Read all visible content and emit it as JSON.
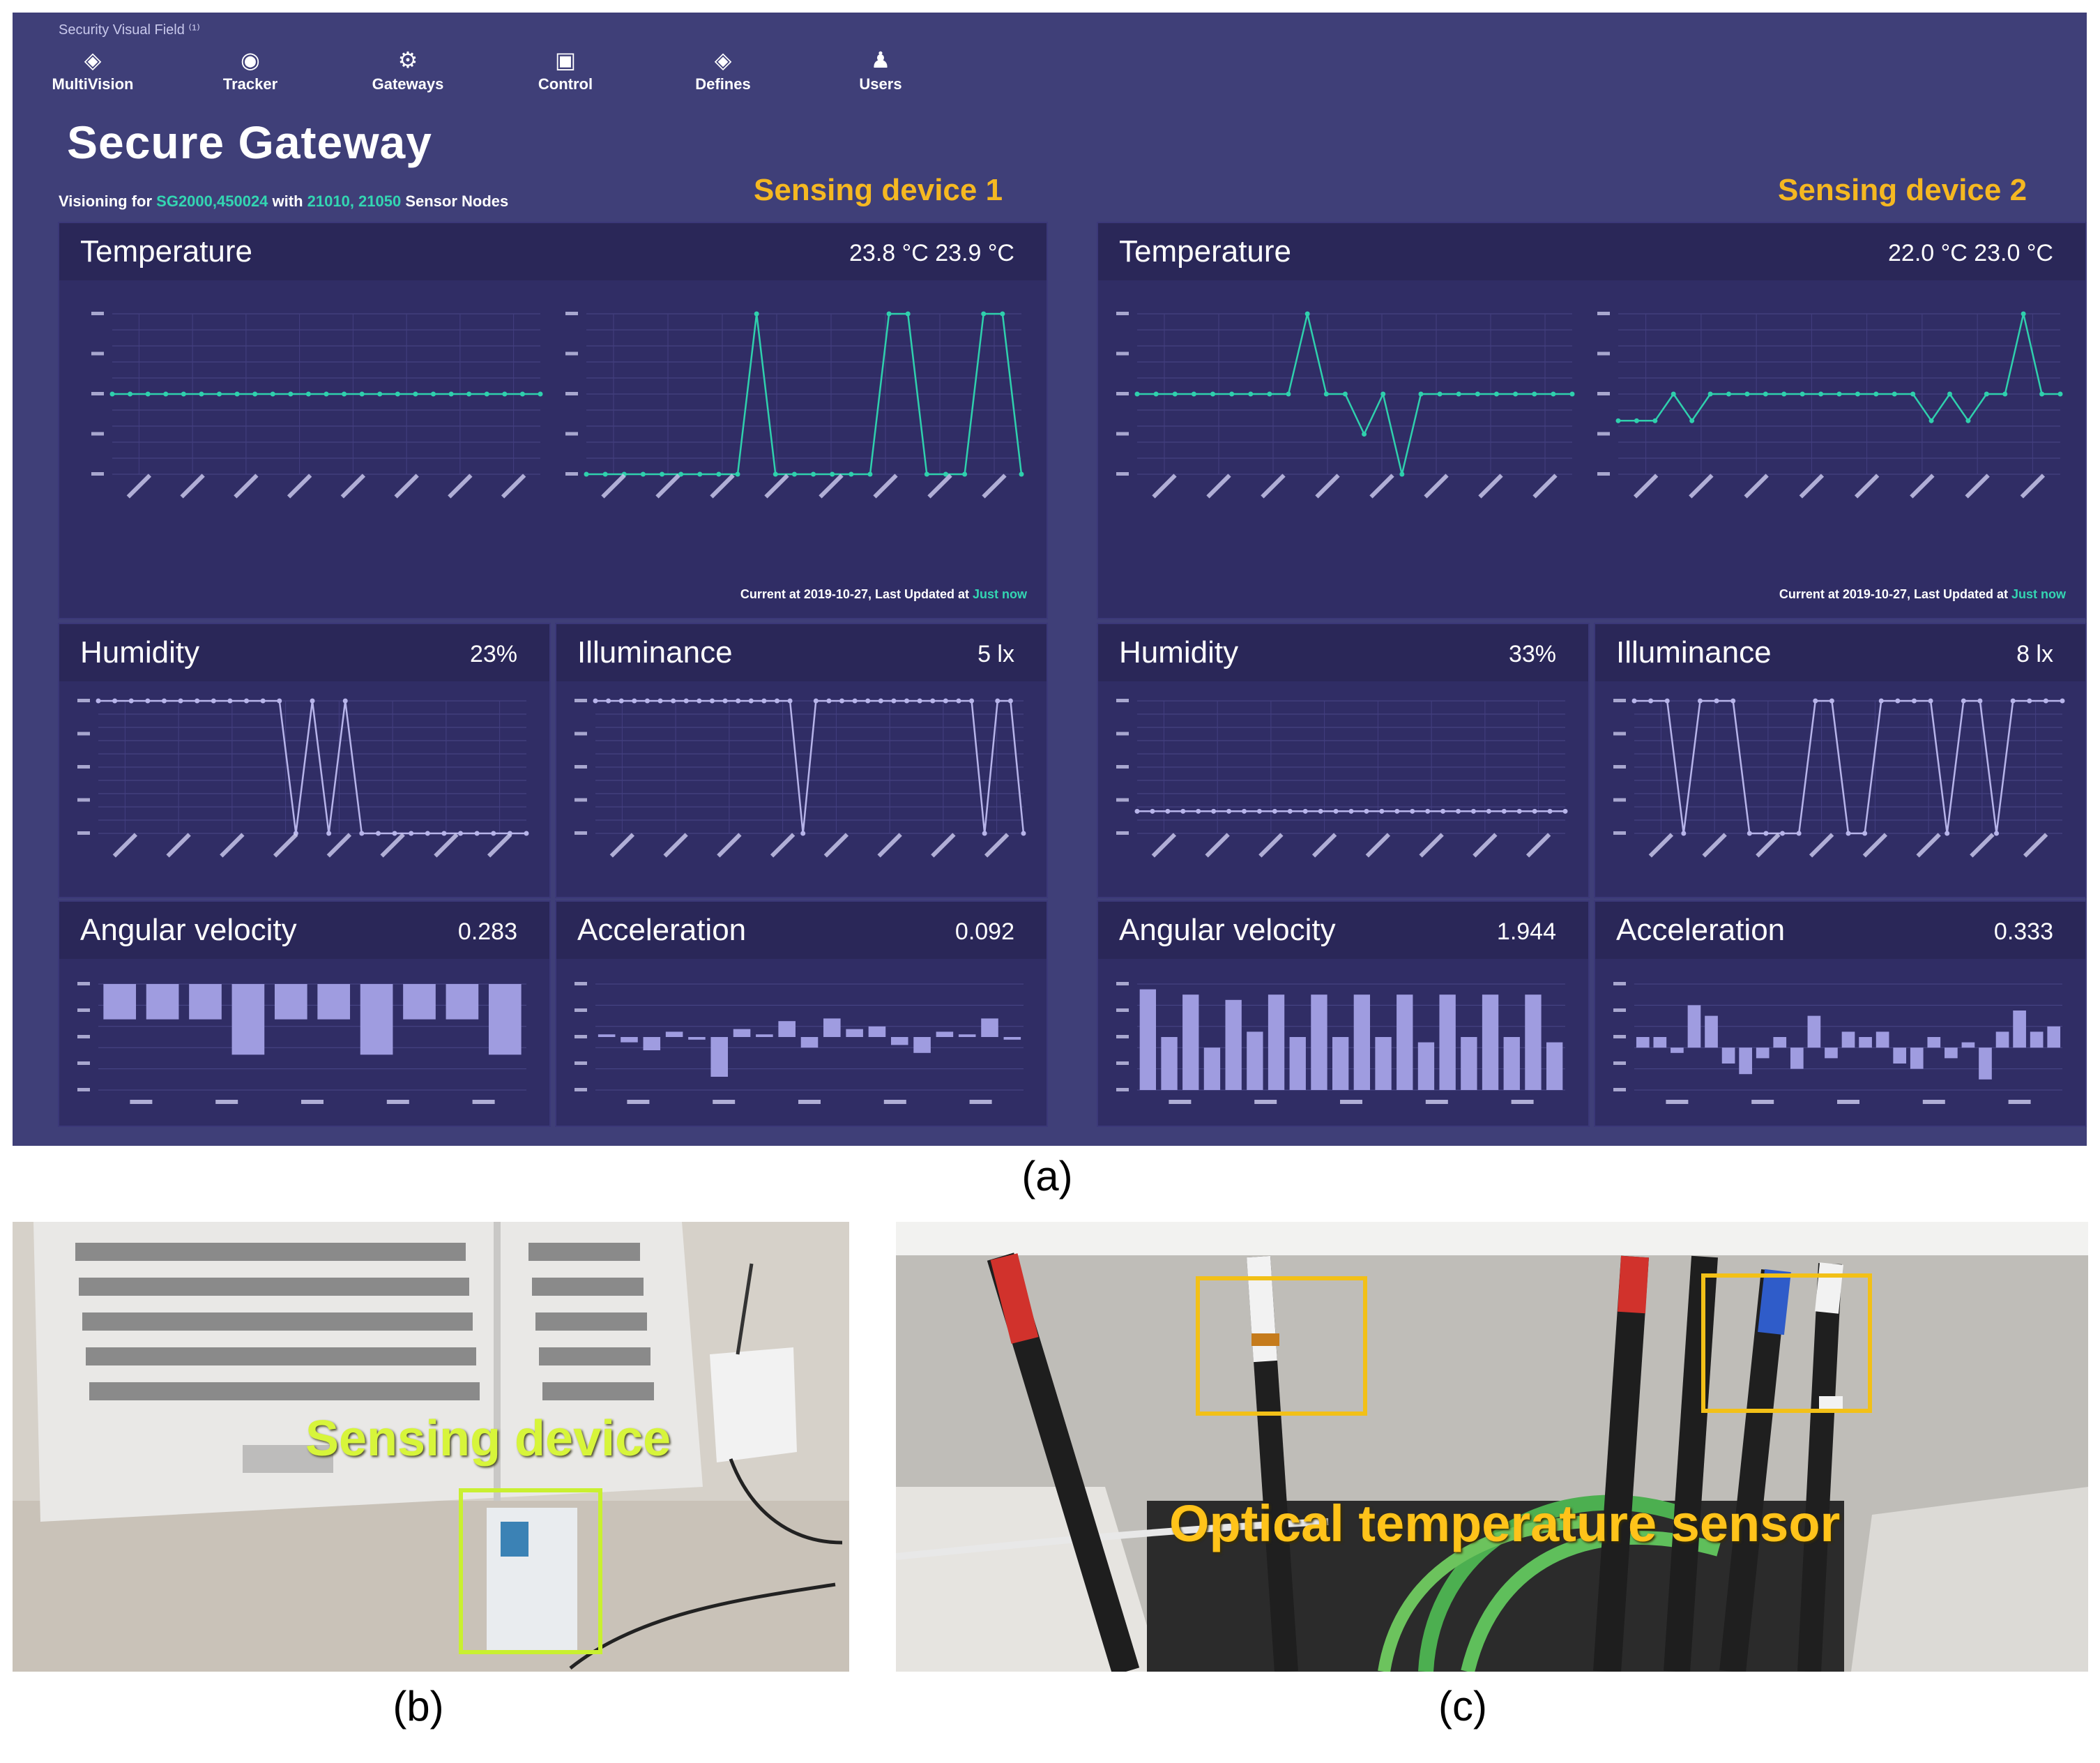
{
  "figure_labels": {
    "a": "(a)",
    "b": "(b)",
    "c": "(c)"
  },
  "dashboard": {
    "brand": "Security Visual Field ⁽¹⁾",
    "nav": [
      {
        "label": "MultiVision",
        "icon": "cube-icon"
      },
      {
        "label": "Tracker",
        "icon": "target-icon"
      },
      {
        "label": "Gateways",
        "icon": "gateway-icon"
      },
      {
        "label": "Control",
        "icon": "control-icon"
      },
      {
        "label": "Defines",
        "icon": "cube-icon"
      },
      {
        "label": "Users",
        "icon": "users-icon"
      }
    ],
    "title": "Secure Gateway",
    "subtitle": {
      "prefix": "Visioning for ",
      "gateway": "SG2000,450024",
      "mid": " with ",
      "nodes": "21010, 21050",
      "suffix": " Sensor Nodes"
    },
    "devices": [
      {
        "heading": "Sensing device 1",
        "temperature": {
          "label": "Temperature",
          "value": "23.8 °C  23.9 °C"
        },
        "footer": {
          "text": "Current at 2019-10-27, Last Updated at ",
          "highlight": "Just now"
        },
        "humidity": {
          "label": "Humidity",
          "value": "23%"
        },
        "illuminance": {
          "label": "Illuminance",
          "value": "5 lx"
        },
        "angular": {
          "label": "Angular velocity",
          "value": "0.283"
        },
        "acceleration": {
          "label": "Acceleration",
          "value": "0.092"
        }
      },
      {
        "heading": "Sensing device 2",
        "temperature": {
          "label": "Temperature",
          "value": "22.0 °C  23.0 °C"
        },
        "footer": {
          "text": "Current at 2019-10-27, Last Updated at ",
          "highlight": "Just now"
        },
        "humidity": {
          "label": "Humidity",
          "value": "33%"
        },
        "illuminance": {
          "label": "Illuminance",
          "value": "8 lx"
        },
        "angular": {
          "label": "Angular velocity",
          "value": "1.944"
        },
        "acceleration": {
          "label": "Acceleration",
          "value": "0.333"
        }
      }
    ]
  },
  "photos": {
    "b": {
      "annotation": "Sensing device"
    },
    "c": {
      "annotation": "Optical temperature sensor"
    }
  },
  "chart_data": [
    {
      "id": "d1-temp-a",
      "type": "line",
      "color": "#2fd0ad",
      "ylim": [
        23.0,
        24.0
      ],
      "values": [
        23.5,
        23.5,
        23.5,
        23.5,
        23.5,
        23.5,
        23.5,
        23.5,
        23.5,
        23.5,
        23.5,
        23.5,
        23.5,
        23.5,
        23.5,
        23.5,
        23.5,
        23.5,
        23.5,
        23.5,
        23.5,
        23.5,
        23.5,
        23.5,
        23.5
      ]
    },
    {
      "id": "d1-temp-b",
      "type": "line",
      "color": "#2fd0ad",
      "ylim": [
        23.8,
        24.0
      ],
      "values": [
        23.8,
        23.8,
        23.8,
        23.8,
        23.8,
        23.8,
        23.8,
        23.8,
        23.8,
        24.0,
        23.8,
        23.8,
        23.8,
        23.8,
        23.8,
        23.8,
        24.0,
        24.0,
        23.8,
        23.8,
        23.8,
        24.0,
        24.0,
        23.8
      ]
    },
    {
      "id": "d2-temp-a",
      "type": "line",
      "color": "#2fd0ad",
      "ylim": [
        22.9,
        23.1
      ],
      "values": [
        23.0,
        23.0,
        23.0,
        23.0,
        23.0,
        23.0,
        23.0,
        23.0,
        23.0,
        23.1,
        23.0,
        23.0,
        22.95,
        23.0,
        22.9,
        23.0,
        23.0,
        23.0,
        23.0,
        23.0,
        23.0,
        23.0,
        23.0,
        23.0
      ]
    },
    {
      "id": "d2-temp-b",
      "type": "line",
      "color": "#2fd0ad",
      "ylim": [
        22.9,
        23.2
      ],
      "values": [
        23.0,
        23.0,
        23.0,
        23.05,
        23.0,
        23.05,
        23.05,
        23.05,
        23.05,
        23.05,
        23.05,
        23.05,
        23.05,
        23.05,
        23.05,
        23.05,
        23.05,
        23.0,
        23.05,
        23.0,
        23.05,
        23.05,
        23.2,
        23.05,
        23.05
      ]
    },
    {
      "id": "d1-hum",
      "type": "line",
      "color": "#b7b4ea",
      "ylim": [
        23.0,
        24.0
      ],
      "values": [
        24.0,
        24.0,
        24.0,
        24.0,
        24.0,
        24.0,
        24.0,
        24.0,
        24.0,
        24.0,
        24.0,
        24.0,
        23.0,
        24.0,
        23.0,
        24.0,
        23.0,
        23.0,
        23.0,
        23.0,
        23.0,
        23.0,
        23.0,
        23.0,
        23.0,
        23.0,
        23.0
      ]
    },
    {
      "id": "d1-ill",
      "type": "line",
      "color": "#b7b4ea",
      "ylim": [
        5.0,
        6.0
      ],
      "values": [
        6.0,
        6.0,
        6.0,
        6.0,
        6.0,
        6.0,
        6.0,
        6.0,
        6.0,
        6.0,
        6.0,
        6.0,
        6.0,
        6.0,
        6.0,
        6.0,
        5.0,
        6.0,
        6.0,
        6.0,
        6.0,
        6.0,
        6.0,
        6.0,
        6.0,
        6.0,
        6.0,
        6.0,
        6.0,
        6.0,
        5.0,
        6.0,
        6.0,
        5.0
      ]
    },
    {
      "id": "d2-hum",
      "type": "line",
      "color": "#b7b4ea",
      "ylim": [
        32.8,
        34.0
      ],
      "values": [
        33.0,
        33.0,
        33.0,
        33.0,
        33.0,
        33.0,
        33.0,
        33.0,
        33.0,
        33.0,
        33.0,
        33.0,
        33.0,
        33.0,
        33.0,
        33.0,
        33.0,
        33.0,
        33.0,
        33.0,
        33.0,
        33.0,
        33.0,
        33.0,
        33.0,
        33.0,
        33.0,
        33.0,
        33.0
      ]
    },
    {
      "id": "d2-ill",
      "type": "line",
      "color": "#b7b4ea",
      "ylim": [
        7.0,
        8.0
      ],
      "values": [
        8.0,
        8.0,
        8.0,
        7.0,
        8.0,
        8.0,
        8.0,
        7.0,
        7.0,
        7.0,
        7.0,
        8.0,
        8.0,
        7.0,
        7.0,
        8.0,
        8.0,
        8.0,
        8.0,
        7.0,
        8.0,
        8.0,
        7.0,
        8.0,
        8.0,
        8.0,
        8.0
      ]
    },
    {
      "id": "d1-ang",
      "type": "bar",
      "color": "#9f9ce0",
      "ylim": [
        -0.3,
        0.0
      ],
      "values": [
        -0.1,
        -0.1,
        -0.1,
        -0.2,
        -0.1,
        -0.1,
        -0.2,
        -0.1,
        -0.1,
        -0.2
      ]
    },
    {
      "id": "d1-acc",
      "type": "bar",
      "color": "#9f9ce0",
      "ylim": [
        -1.0,
        1.0
      ],
      "values": [
        0.05,
        -0.1,
        -0.25,
        0.1,
        -0.05,
        -0.75,
        0.15,
        0.05,
        0.3,
        -0.2,
        0.35,
        0.15,
        0.2,
        -0.15,
        -0.3,
        0.1,
        0.05,
        0.35,
        -0.05
      ]
    },
    {
      "id": "d2-ang",
      "type": "bar",
      "color": "#9f9ce0",
      "ylim": [
        0.0,
        2.0
      ],
      "values": [
        1.9,
        1.0,
        1.8,
        0.8,
        1.7,
        1.1,
        1.8,
        1.0,
        1.8,
        1.0,
        1.8,
        1.0,
        1.8,
        0.9,
        1.8,
        1.0,
        1.8,
        1.0,
        1.8,
        0.9
      ]
    },
    {
      "id": "d2-acc",
      "type": "bar",
      "color": "#9f9ce0",
      "ylim": [
        -0.4,
        0.6
      ],
      "values": [
        0.1,
        0.1,
        -0.05,
        0.4,
        0.3,
        -0.15,
        -0.25,
        -0.1,
        0.1,
        -0.2,
        0.3,
        -0.1,
        0.15,
        0.1,
        0.15,
        -0.15,
        -0.2,
        0.1,
        -0.1,
        0.05,
        -0.3,
        0.15,
        0.35,
        0.15,
        0.2
      ]
    }
  ]
}
